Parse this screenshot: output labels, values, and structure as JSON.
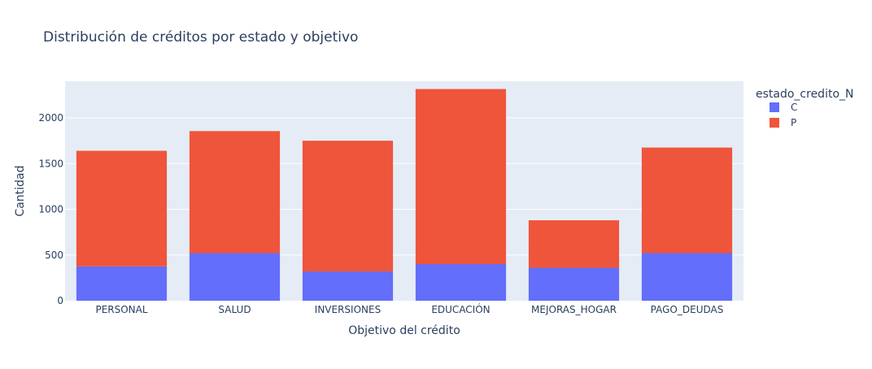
{
  "chart_data": {
    "type": "bar",
    "barmode": "stack",
    "title": "Distribución de créditos por estado y objetivo",
    "xlabel": "Objetivo del crédito",
    "ylabel": "Cantidad",
    "categories": [
      "PERSONAL",
      "SALUD",
      "INVERSIONES",
      "EDUCACIÓN",
      "MEJORAS_HOGAR",
      "PAGO_DEUDAS"
    ],
    "series": [
      {
        "name": "C",
        "color": "#636efa",
        "values": [
          375,
          520,
          320,
          400,
          360,
          520
        ]
      },
      {
        "name": "P",
        "color": "#ef553b",
        "values": [
          1265,
          1335,
          1430,
          1915,
          520,
          1155
        ]
      }
    ],
    "ylim": [
      0,
      2400
    ],
    "yticks": [
      0,
      500,
      1000,
      1500,
      2000
    ],
    "ytick_labels": [
      "0",
      "500",
      "1000",
      "1500",
      "2000"
    ],
    "grid": true,
    "plot_background": "#e5ecf6",
    "legend": {
      "title": "estado_credito_N",
      "placement": "right",
      "entries": [
        "C",
        "P"
      ]
    }
  }
}
